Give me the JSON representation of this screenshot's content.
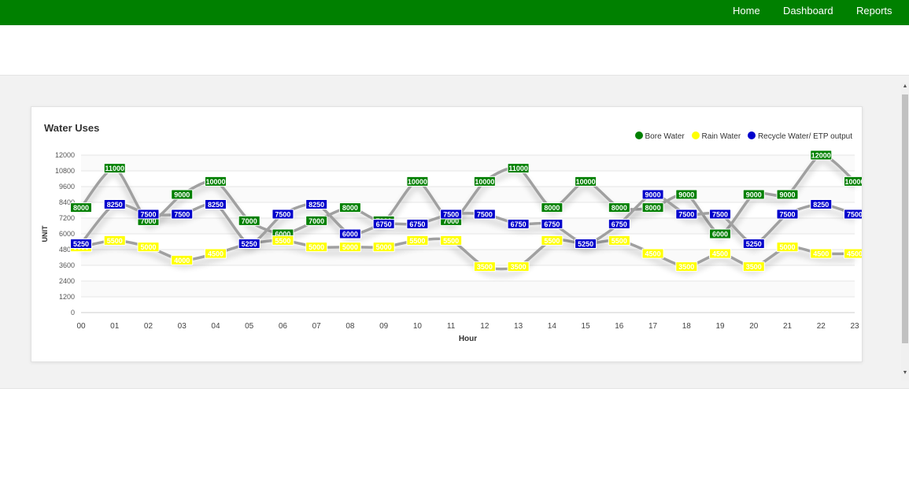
{
  "nav": {
    "items": [
      "Home",
      "Dashboard",
      "Reports"
    ]
  },
  "chart_data": {
    "type": "line",
    "title": "Water Uses",
    "xlabel": "Hour",
    "ylabel": "UNIT",
    "categories": [
      "00",
      "01",
      "02",
      "03",
      "04",
      "05",
      "06",
      "07",
      "08",
      "09",
      "10",
      "11",
      "12",
      "13",
      "14",
      "15",
      "16",
      "17",
      "18",
      "19",
      "20",
      "21",
      "22",
      "23"
    ],
    "yticks": [
      0,
      1200,
      2400,
      3600,
      4800,
      6000,
      7200,
      8400,
      9600,
      10800,
      12000
    ],
    "ylim": [
      0,
      12000
    ],
    "grid": true,
    "legend_position": "top-right",
    "series": [
      {
        "name": "Bore Water",
        "color": "#008000",
        "label_text_color": "#ffffff",
        "values": [
          8000,
          11000,
          7000,
          9000,
          10000,
          7000,
          6000,
          7000,
          8000,
          7000,
          10000,
          7000,
          10000,
          11000,
          8000,
          10000,
          8000,
          8000,
          9000,
          6000,
          9000,
          9000,
          12000,
          10000
        ]
      },
      {
        "name": "Rain Water",
        "color": "#ffff00",
        "label_text_color": "#ffffff",
        "values": [
          5000,
          5500,
          5000,
          4000,
          4500,
          5250,
          5500,
          5000,
          5000,
          5000,
          5500,
          5500,
          3500,
          3500,
          5500,
          5250,
          5500,
          4500,
          3500,
          4500,
          3500,
          5000,
          4500,
          4500
        ]
      },
      {
        "name": "Recycle Water/ ETP output",
        "color": "#0000cc",
        "label_text_color": "#ffffff",
        "values": [
          5250,
          8250,
          7500,
          7500,
          8250,
          5250,
          7500,
          8250,
          6000,
          6750,
          6750,
          7500,
          7500,
          6750,
          6750,
          5250,
          6750,
          9000,
          7500,
          7500,
          5250,
          7500,
          8250,
          7500
        ]
      }
    ]
  }
}
